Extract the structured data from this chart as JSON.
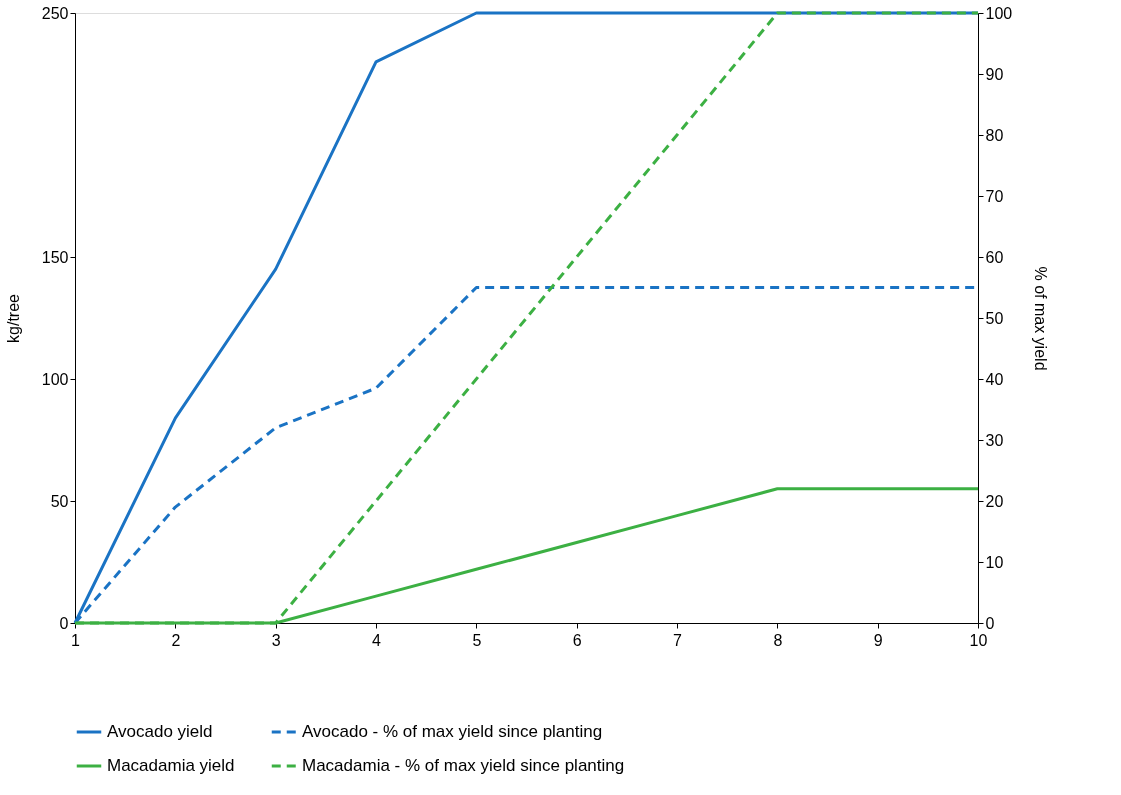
{
  "chart_data": {
    "type": "line",
    "ylabel": "kg/tree",
    "y2label": "% of max yield",
    "x": [
      1,
      2,
      3,
      4,
      5,
      6,
      7,
      8,
      9,
      10
    ],
    "xlim": [
      1,
      10
    ],
    "xticks": [
      1,
      2,
      3,
      4,
      5,
      6,
      7,
      8,
      9,
      10
    ],
    "ylim": [
      0,
      250
    ],
    "yticks": [
      0,
      50,
      100,
      150,
      250
    ],
    "y2lim": [
      0,
      100
    ],
    "y2ticks": [
      0,
      10,
      20,
      30,
      40,
      50,
      60,
      70,
      80,
      90,
      100
    ],
    "series": [
      {
        "name": "Avocado yield",
        "color": "#1a73c4",
        "line_style": "solid",
        "values": [
          0,
          84,
          145,
          230,
          250,
          250,
          250,
          250,
          250,
          250
        ]
      },
      {
        "name": "Avocado - % of max yield since planting",
        "color": "#1a73c4",
        "line_style": "dashed",
        "axis": "y2",
        "values": [
          0,
          19,
          32,
          38.5,
          55,
          55,
          55,
          55,
          55,
          55
        ]
      },
      {
        "name": "Macadamia yield",
        "color": "#3cb043",
        "line_style": "solid",
        "values": [
          0,
          0,
          0,
          11,
          22,
          33,
          44,
          55,
          55,
          55
        ]
      },
      {
        "name": "Macadamia - % of max yield since planting",
        "color": "#3cb043",
        "line_style": "dashed",
        "axis": "y2",
        "values": [
          0,
          0,
          0,
          20,
          40,
          60,
          80,
          100,
          100,
          100
        ]
      }
    ],
    "grid": false,
    "legend": "bottom",
    "marker": "none"
  }
}
